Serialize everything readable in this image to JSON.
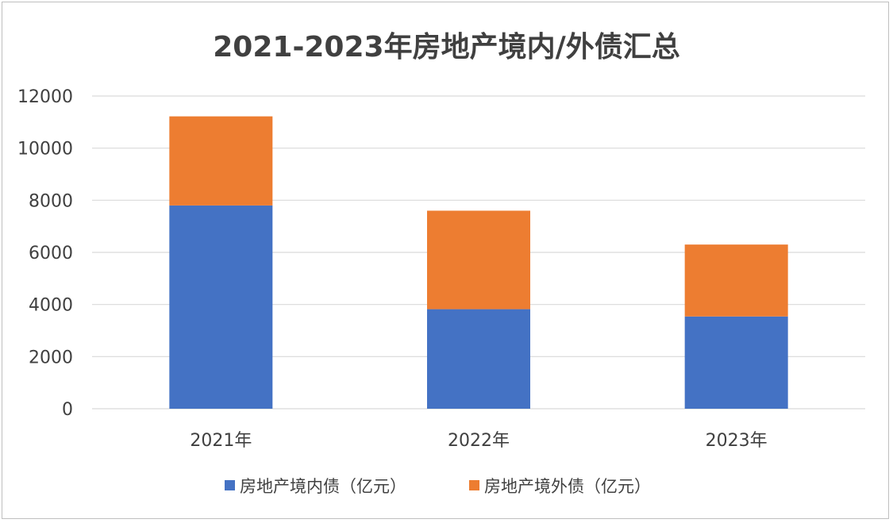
{
  "chart_data": {
    "type": "bar",
    "stacked": true,
    "title": "2021-2023年房地产境内/外债汇总",
    "categories": [
      "2021年",
      "2022年",
      "2023年"
    ],
    "series": [
      {
        "name": "房地产境内债（亿元）",
        "values": [
          7800,
          3820,
          3540
        ],
        "color": "#4472c4"
      },
      {
        "name": "房地产境外债（亿元）",
        "values": [
          3420,
          3780,
          2760
        ],
        "color": "#ed7d31"
      }
    ],
    "ylim": [
      0,
      12000
    ],
    "yticks": [
      "0",
      "2000",
      "4000",
      "6000",
      "8000",
      "10000",
      "12000"
    ],
    "grid": true,
    "legend": "bottom",
    "gridColor": "#d9d9d9"
  }
}
